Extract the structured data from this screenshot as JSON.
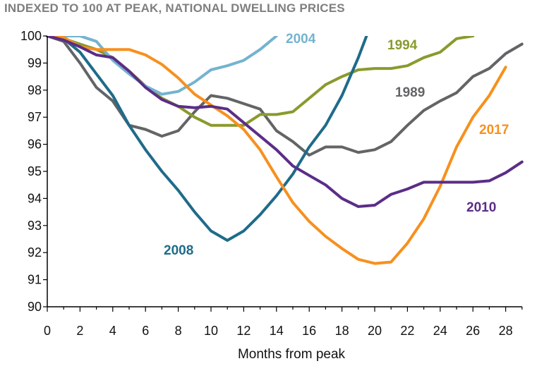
{
  "chart_data": {
    "type": "line",
    "title": "INDEXED TO 100 AT PEAK, NATIONAL DWELLING PRICES",
    "xlabel": "Months from peak",
    "ylabel": "",
    "xlim": [
      0,
      29
    ],
    "ylim": [
      90,
      100
    ],
    "xticks": [
      0,
      2,
      4,
      6,
      8,
      10,
      12,
      14,
      16,
      18,
      20,
      22,
      24,
      26,
      28
    ],
    "yticks": [
      90,
      91,
      92,
      93,
      94,
      95,
      96,
      97,
      98,
      99,
      100
    ],
    "grid": false,
    "legend": "inline labels",
    "series": [
      {
        "name": "1989",
        "color": "#636466",
        "x": [
          0,
          1,
          2,
          3,
          4,
          5,
          6,
          7,
          8,
          9,
          10,
          11,
          12,
          13,
          14,
          15,
          16,
          17,
          18,
          19,
          20,
          21,
          22,
          23,
          24,
          25,
          26,
          27,
          28,
          29
        ],
        "y": [
          100,
          99.8,
          99.0,
          98.1,
          97.6,
          96.7,
          96.55,
          96.3,
          96.5,
          97.2,
          97.8,
          97.7,
          97.5,
          97.3,
          96.5,
          96.1,
          95.6,
          95.9,
          95.9,
          95.7,
          95.8,
          96.1,
          96.7,
          97.25,
          97.6,
          97.9,
          98.5,
          98.8,
          99.35,
          99.7
        ]
      },
      {
        "name": "1994",
        "color": "#8a9a2d",
        "x": [
          0,
          1,
          2,
          3,
          4,
          5,
          6,
          7,
          8,
          9,
          10,
          11,
          12,
          13,
          14,
          15,
          16,
          17,
          18,
          19,
          20,
          21,
          22,
          23,
          24,
          25,
          26
        ],
        "y": [
          100,
          99.9,
          99.7,
          99.5,
          99.2,
          98.7,
          98.15,
          97.7,
          97.4,
          97.0,
          96.7,
          96.7,
          96.7,
          97.1,
          97.1,
          97.2,
          97.7,
          98.2,
          98.5,
          98.75,
          98.8,
          98.8,
          98.9,
          99.2,
          99.4,
          99.9,
          100
        ]
      },
      {
        "name": "2004",
        "color": "#74b3cf",
        "x": [
          0,
          1,
          2,
          3,
          4,
          5,
          6,
          7,
          8,
          9,
          10,
          11,
          12,
          13,
          14
        ],
        "y": [
          100,
          100,
          100,
          99.8,
          99.1,
          98.6,
          98.15,
          97.85,
          97.95,
          98.3,
          98.75,
          98.9,
          99.1,
          99.5,
          100
        ]
      },
      {
        "name": "2008",
        "color": "#1f6b8a",
        "x": [
          0,
          1,
          2,
          3,
          4,
          5,
          6,
          7,
          8,
          9,
          10,
          11,
          12,
          13,
          14,
          15,
          16,
          17,
          18,
          19,
          19.5
        ],
        "y": [
          100,
          99.9,
          99.4,
          98.6,
          97.8,
          96.7,
          95.8,
          95.0,
          94.3,
          93.5,
          92.8,
          92.45,
          92.8,
          93.4,
          94.1,
          94.9,
          95.9,
          96.7,
          97.8,
          99.2,
          100
        ]
      },
      {
        "name": "2010",
        "color": "#5b2d87",
        "x": [
          0,
          1,
          2,
          3,
          4,
          5,
          6,
          7,
          8,
          9,
          10,
          11,
          12,
          13,
          14,
          15,
          16,
          17,
          18,
          19,
          20,
          21,
          22,
          23,
          24,
          25,
          26,
          27,
          28,
          29
        ],
        "y": [
          100,
          99.85,
          99.6,
          99.3,
          99.2,
          98.7,
          98.1,
          97.65,
          97.4,
          97.35,
          97.4,
          97.3,
          96.8,
          96.3,
          95.8,
          95.2,
          94.85,
          94.5,
          94.0,
          93.7,
          93.75,
          94.15,
          94.35,
          94.6,
          94.6,
          94.6,
          94.6,
          94.65,
          94.95,
          95.35
        ]
      },
      {
        "name": "2017",
        "color": "#f7901e",
        "x": [
          0,
          1,
          2,
          3,
          4,
          5,
          6,
          7,
          8,
          9,
          10,
          11,
          12,
          13,
          14,
          15,
          16,
          17,
          18,
          19,
          20,
          21,
          22,
          23,
          24,
          25,
          26,
          27,
          28
        ],
        "y": [
          100,
          99.95,
          99.6,
          99.5,
          99.5,
          99.5,
          99.3,
          98.95,
          98.45,
          97.85,
          97.45,
          97.05,
          96.55,
          95.8,
          94.8,
          93.85,
          93.15,
          92.6,
          92.15,
          91.75,
          91.6,
          91.65,
          92.35,
          93.25,
          94.45,
          95.9,
          97.0,
          97.8,
          98.85
        ]
      }
    ]
  }
}
